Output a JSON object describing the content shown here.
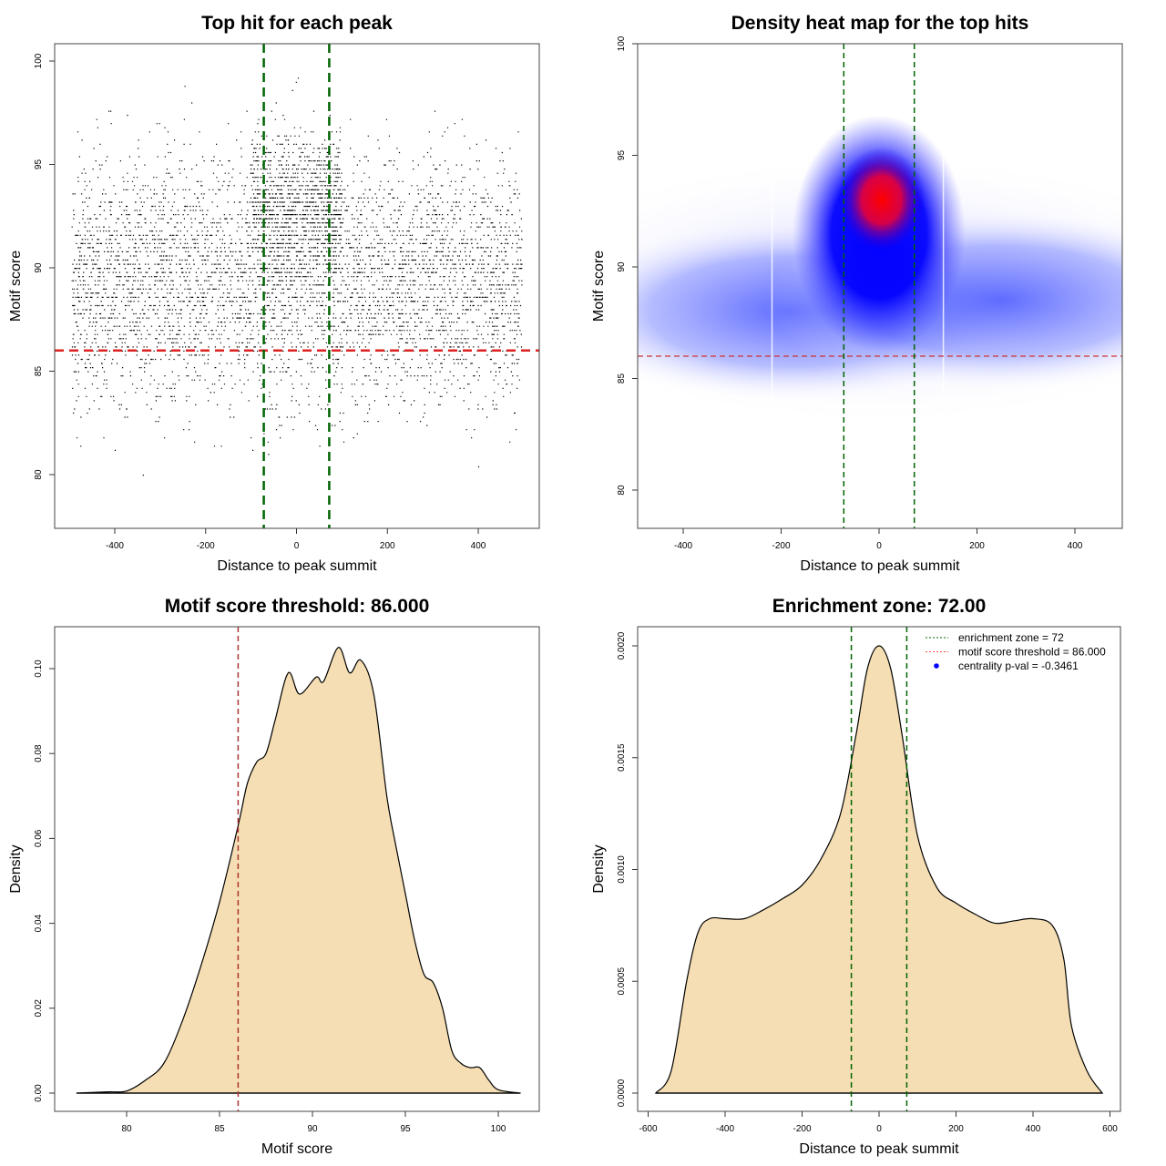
{
  "chart_data": [
    {
      "type": "scatter",
      "title": "Top hit for each peak",
      "xlabel": "Distance to peak summit",
      "ylabel": "Motif score",
      "xlim": [
        -530,
        535
      ],
      "ylim": [
        77.5,
        101
      ],
      "xticks": [
        -400,
        -200,
        0,
        200,
        400
      ],
      "yticks": [
        80,
        85,
        90,
        95,
        100
      ],
      "points_description_range": {
        "x": [
          -500,
          500
        ],
        "y": [
          78,
          100
        ]
      },
      "vlines": [
        -72,
        72
      ],
      "hline": 86,
      "colors": {
        "points": "#000000",
        "vlines": "#006400",
        "hline": "#dd2222"
      }
    },
    {
      "type": "heatmap",
      "title": "Density heat map for the top hits",
      "xlabel": "Distance to peak summit",
      "ylabel": "Motif score",
      "xlim": [
        -490,
        500
      ],
      "ylim": [
        78352,
        100
      ],
      "xticks": [
        -400,
        -200,
        0,
        200,
        400
      ],
      "yticks": [
        80,
        85,
        90,
        95,
        100
      ],
      "peak": {
        "x": 5,
        "y": 93
      },
      "vlines": [
        -72,
        72
      ],
      "hline": 86,
      "colors": {
        "low": "#ffffff",
        "mid": "#0000ff",
        "high": "#ff0000",
        "vlines": "#006400",
        "hline": "#cc3333"
      }
    },
    {
      "type": "area",
      "title": "Motif score threshold: 86.000",
      "xlabel": "Motif score",
      "ylabel": "Density",
      "xlim": [
        76.2,
        102.2
      ],
      "ylim": [
        -0.004,
        0.11
      ],
      "xticks": [
        80,
        85,
        90,
        95,
        100
      ],
      "yticks": [
        "0.00",
        "0.02",
        "0.04",
        "0.06",
        "0.08",
        "0.10"
      ],
      "x": [
        77.3,
        79,
        80,
        81,
        82,
        83,
        84,
        85,
        86,
        86.5,
        87,
        87.5,
        88,
        88.7,
        89.3,
        90.2,
        90.6,
        91.4,
        92,
        92.6,
        93.3,
        94,
        94.5,
        95,
        95.5,
        96,
        96.5,
        97,
        97.5,
        98,
        98.5,
        99,
        99.5,
        100,
        101.2
      ],
      "y": [
        0,
        0.0003,
        0.0005,
        0.003,
        0.007,
        0.017,
        0.03,
        0.045,
        0.063,
        0.073,
        0.078,
        0.08,
        0.088,
        0.099,
        0.094,
        0.098,
        0.097,
        0.105,
        0.099,
        0.102,
        0.094,
        0.07,
        0.058,
        0.047,
        0.036,
        0.028,
        0.026,
        0.02,
        0.01,
        0.007,
        0.006,
        0.006,
        0.003,
        0.0008,
        0
      ],
      "vline": 86,
      "colors": {
        "fill": "#f5deb3",
        "line": "#000000",
        "vline": "#aa3333"
      }
    },
    {
      "type": "area",
      "title": "Enrichment zone: 72.00",
      "xlabel": "Distance to peak summit",
      "ylabel": "Density",
      "xlim": [
        -627,
        627
      ],
      "ylim": [
        -8e-05,
        0.00209
      ],
      "xticks": [
        -600,
        -400,
        -200,
        0,
        200,
        400,
        600
      ],
      "yticks": [
        "0.0000",
        "0.0005",
        "0.0010",
        "0.0015",
        "0.0020"
      ],
      "x": [
        -580,
        -540,
        -500,
        -470,
        -440,
        -400,
        -350,
        -300,
        -250,
        -200,
        -150,
        -100,
        -60,
        -30,
        0,
        30,
        60,
        100,
        150,
        200,
        250,
        300,
        350,
        400,
        450,
        480,
        500,
        540,
        580
      ],
      "y": [
        0,
        0.0001,
        0.0005,
        0.00072,
        0.00078,
        0.00078,
        0.00078,
        0.00082,
        0.00087,
        0.00093,
        0.00105,
        0.00125,
        0.0016,
        0.0019,
        0.002,
        0.0019,
        0.0016,
        0.00115,
        0.00092,
        0.00085,
        0.0008,
        0.00076,
        0.00077,
        0.00078,
        0.00075,
        0.0006,
        0.0003,
        0.0001,
        0
      ],
      "vlines": [
        -72,
        72
      ],
      "legend": {
        "position": "top-right",
        "items": [
          {
            "label": "enrichment zone = 72",
            "color": "#006400",
            "style": "dotted"
          },
          {
            "label": "motif score threshold = 86.000",
            "color": "#ff4444",
            "style": "dotted"
          },
          {
            "label": "centrality p-val = -0.3461",
            "color": "#0000ff",
            "style": "point"
          }
        ]
      },
      "colors": {
        "fill": "#f5deb3",
        "line": "#000000",
        "vline": "#006400"
      }
    }
  ]
}
